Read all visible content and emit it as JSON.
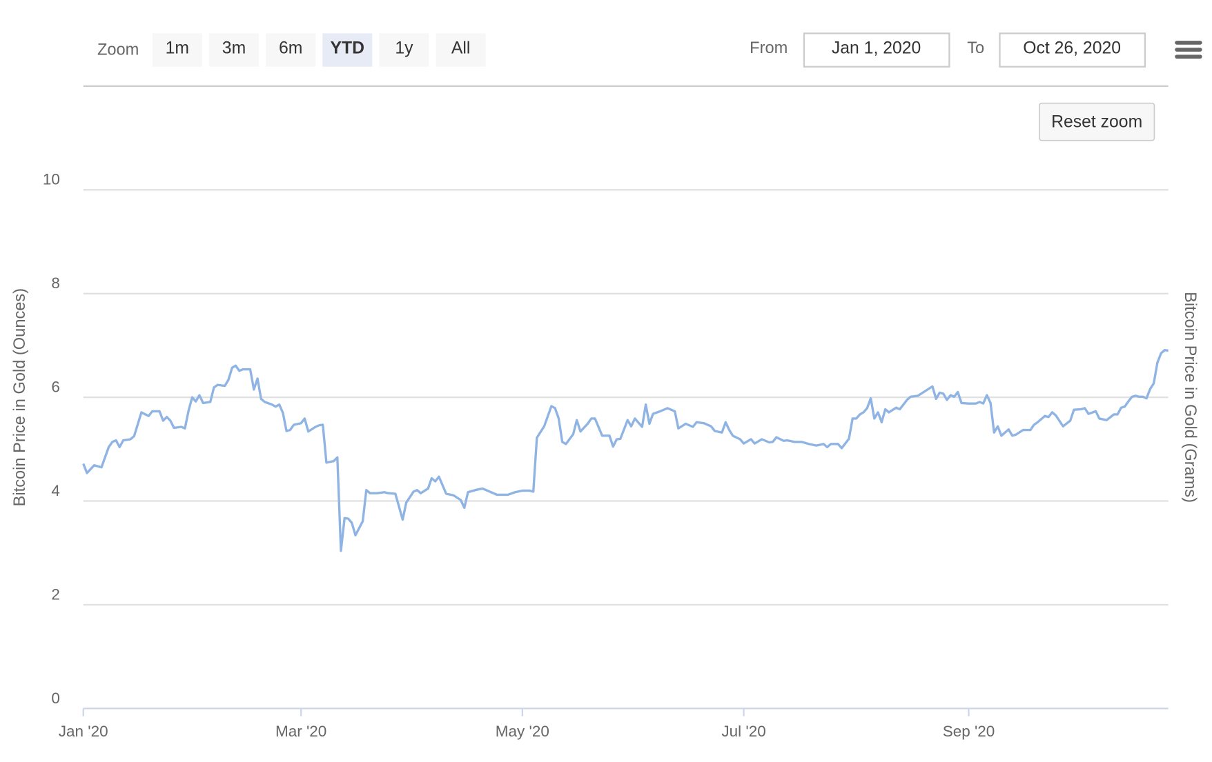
{
  "range_selector": {
    "zoom_label": "Zoom",
    "buttons": [
      "1m",
      "3m",
      "6m",
      "YTD",
      "1y",
      "All"
    ],
    "selected": "YTD",
    "from_label": "From",
    "from_value": "Jan 1, 2020",
    "to_label": "To",
    "to_value": "Oct 26, 2020"
  },
  "reset_zoom": "Reset zoom",
  "chart_data": {
    "type": "line",
    "y_label": "Bitcoin Price in Gold (Ounces)",
    "y2_label": "Bitcoin Price in Gold (Grams)",
    "xlim": [
      "2020-01-01",
      "2020-10-26"
    ],
    "xticks": [
      {
        "value": "2020-01-01",
        "label": "Jan '20"
      },
      {
        "value": "2020-03-01",
        "label": "Mar '20"
      },
      {
        "value": "2020-05-01",
        "label": "May '20"
      },
      {
        "value": "2020-07-01",
        "label": "Jul '20"
      },
      {
        "value": "2020-09-01",
        "label": "Sep '20"
      }
    ],
    "ylim": [
      0,
      12
    ],
    "yticks": [
      0,
      2,
      4,
      6,
      8,
      10
    ],
    "grid": true,
    "x": [
      "2020-01-01",
      "2020-01-02",
      "2020-01-04",
      "2020-01-06",
      "2020-01-08",
      "2020-01-09",
      "2020-01-10",
      "2020-01-11",
      "2020-01-12",
      "2020-01-14",
      "2020-01-15",
      "2020-01-17",
      "2020-01-19",
      "2020-01-20",
      "2020-01-22",
      "2020-01-23",
      "2020-01-24",
      "2020-01-25",
      "2020-01-26",
      "2020-01-28",
      "2020-01-29",
      "2020-01-30",
      "2020-01-31",
      "2020-02-01",
      "2020-02-02",
      "2020-02-03",
      "2020-02-05",
      "2020-02-06",
      "2020-02-07",
      "2020-02-09",
      "2020-02-10",
      "2020-02-11",
      "2020-02-12",
      "2020-02-13",
      "2020-02-14",
      "2020-02-16",
      "2020-02-17",
      "2020-02-18",
      "2020-02-19",
      "2020-02-20",
      "2020-02-22",
      "2020-02-23",
      "2020-02-24",
      "2020-02-25",
      "2020-02-26",
      "2020-02-27",
      "2020-02-28",
      "2020-03-01",
      "2020-03-02",
      "2020-03-03",
      "2020-03-05",
      "2020-03-06",
      "2020-03-07",
      "2020-03-08",
      "2020-03-10",
      "2020-03-11",
      "2020-03-12",
      "2020-03-13",
      "2020-03-14",
      "2020-03-15",
      "2020-03-16",
      "2020-03-18",
      "2020-03-19",
      "2020-03-20",
      "2020-03-22",
      "2020-03-24",
      "2020-03-25",
      "2020-03-27",
      "2020-03-29",
      "2020-03-30",
      "2020-04-01",
      "2020-04-02",
      "2020-04-03",
      "2020-04-05",
      "2020-04-06",
      "2020-04-07",
      "2020-04-08",
      "2020-04-10",
      "2020-04-12",
      "2020-04-14",
      "2020-04-15",
      "2020-04-16",
      "2020-04-18",
      "2020-04-20",
      "2020-04-22",
      "2020-04-24",
      "2020-04-27",
      "2020-04-29",
      "2020-05-01",
      "2020-05-03",
      "2020-05-04",
      "2020-05-05",
      "2020-05-07",
      "2020-05-09",
      "2020-05-10",
      "2020-05-11",
      "2020-05-12",
      "2020-05-13",
      "2020-05-15",
      "2020-05-16",
      "2020-05-17",
      "2020-05-19",
      "2020-05-20",
      "2020-05-21",
      "2020-05-23",
      "2020-05-25",
      "2020-05-26",
      "2020-05-27",
      "2020-05-28",
      "2020-05-30",
      "2020-05-31",
      "2020-06-01",
      "2020-06-03",
      "2020-06-04",
      "2020-06-05",
      "2020-06-06",
      "2020-06-08",
      "2020-06-10",
      "2020-06-11",
      "2020-06-12",
      "2020-06-13",
      "2020-06-15",
      "2020-06-17",
      "2020-06-18",
      "2020-06-20",
      "2020-06-22",
      "2020-06-23",
      "2020-06-25",
      "2020-06-26",
      "2020-06-27",
      "2020-06-28",
      "2020-06-30",
      "2020-07-01",
      "2020-07-03",
      "2020-07-04",
      "2020-07-06",
      "2020-07-08",
      "2020-07-09",
      "2020-07-10",
      "2020-07-12",
      "2020-07-13",
      "2020-07-15",
      "2020-07-17",
      "2020-07-19",
      "2020-07-21",
      "2020-07-23",
      "2020-07-24",
      "2020-07-25",
      "2020-07-27",
      "2020-07-28",
      "2020-07-30",
      "2020-07-31",
      "2020-08-01",
      "2020-08-02",
      "2020-08-03",
      "2020-08-04",
      "2020-08-05",
      "2020-08-06",
      "2020-08-07",
      "2020-08-08",
      "2020-08-09",
      "2020-08-10",
      "2020-08-12",
      "2020-08-13",
      "2020-08-15",
      "2020-08-16",
      "2020-08-18",
      "2020-08-20",
      "2020-08-22",
      "2020-08-23",
      "2020-08-24",
      "2020-08-25",
      "2020-08-26",
      "2020-08-27",
      "2020-08-28",
      "2020-08-29",
      "2020-08-30",
      "2020-09-01",
      "2020-09-03",
      "2020-09-04",
      "2020-09-05",
      "2020-09-06",
      "2020-09-07",
      "2020-09-08",
      "2020-09-09",
      "2020-09-10",
      "2020-09-12",
      "2020-09-13",
      "2020-09-14",
      "2020-09-16",
      "2020-09-18",
      "2020-09-19",
      "2020-09-20",
      "2020-09-22",
      "2020-09-23",
      "2020-09-24",
      "2020-09-25",
      "2020-09-27",
      "2020-09-29",
      "2020-09-30",
      "2020-10-02",
      "2020-10-03",
      "2020-10-04",
      "2020-10-06",
      "2020-10-07",
      "2020-10-09",
      "2020-10-11",
      "2020-10-12",
      "2020-10-13",
      "2020-10-14",
      "2020-10-15",
      "2020-10-16",
      "2020-10-17",
      "2020-10-18",
      "2020-10-19",
      "2020-10-20",
      "2020-10-21",
      "2020-10-22",
      "2020-10-23",
      "2020-10-24",
      "2020-10-25",
      "2020-10-26"
    ],
    "series": [
      {
        "color": "#8fb4e3",
        "values": [
          4.72,
          4.54,
          4.69,
          4.65,
          5.04,
          5.14,
          5.17,
          5.04,
          5.17,
          5.19,
          5.25,
          5.71,
          5.64,
          5.73,
          5.73,
          5.55,
          5.62,
          5.55,
          5.41,
          5.43,
          5.4,
          5.74,
          6.0,
          5.92,
          6.04,
          5.89,
          5.91,
          6.19,
          6.24,
          6.22,
          6.34,
          6.57,
          6.61,
          6.51,
          6.54,
          6.54,
          6.15,
          6.36,
          5.97,
          5.91,
          5.86,
          5.82,
          5.86,
          5.7,
          5.35,
          5.37,
          5.47,
          5.5,
          5.59,
          5.34,
          5.43,
          5.46,
          5.47,
          4.74,
          4.77,
          4.84,
          3.04,
          3.67,
          3.66,
          3.58,
          3.34,
          3.61,
          4.21,
          4.15,
          4.15,
          4.17,
          4.15,
          4.14,
          3.64,
          3.97,
          4.18,
          4.21,
          4.15,
          4.24,
          4.44,
          4.38,
          4.47,
          4.14,
          4.11,
          4.02,
          3.87,
          4.17,
          4.21,
          4.24,
          4.18,
          4.12,
          4.12,
          4.17,
          4.2,
          4.2,
          4.18,
          5.22,
          5.44,
          5.83,
          5.79,
          5.59,
          5.14,
          5.1,
          5.29,
          5.56,
          5.34,
          5.49,
          5.59,
          5.59,
          5.26,
          5.26,
          5.05,
          5.19,
          5.2,
          5.56,
          5.44,
          5.59,
          5.43,
          5.86,
          5.49,
          5.68,
          5.73,
          5.79,
          5.76,
          5.73,
          5.4,
          5.49,
          5.43,
          5.52,
          5.5,
          5.44,
          5.35,
          5.32,
          5.52,
          5.37,
          5.26,
          5.19,
          5.11,
          5.19,
          5.11,
          5.19,
          5.13,
          5.14,
          5.23,
          5.16,
          5.17,
          5.14,
          5.14,
          5.1,
          5.07,
          5.1,
          5.04,
          5.1,
          5.1,
          5.02,
          5.2,
          5.59,
          5.59,
          5.67,
          5.71,
          5.79,
          5.98,
          5.59,
          5.71,
          5.52,
          5.77,
          5.71,
          5.8,
          5.77,
          5.95,
          6.01,
          6.03,
          6.12,
          6.21,
          5.97,
          6.09,
          6.07,
          5.95,
          6.04,
          6.01,
          6.1,
          5.89,
          5.88,
          5.88,
          5.91,
          5.88,
          6.04,
          5.89,
          5.32,
          5.44,
          5.26,
          5.38,
          5.26,
          5.28,
          5.37,
          5.37,
          5.47,
          5.52,
          5.64,
          5.62,
          5.71,
          5.65,
          5.44,
          5.55,
          5.76,
          5.77,
          5.79,
          5.68,
          5.73,
          5.59,
          5.56,
          5.67,
          5.67,
          5.8,
          5.82,
          5.92,
          6.01,
          6.03,
          6.01,
          6.01,
          5.98,
          6.16,
          6.27,
          6.67,
          6.85,
          6.91,
          6.9
        ]
      }
    ]
  }
}
